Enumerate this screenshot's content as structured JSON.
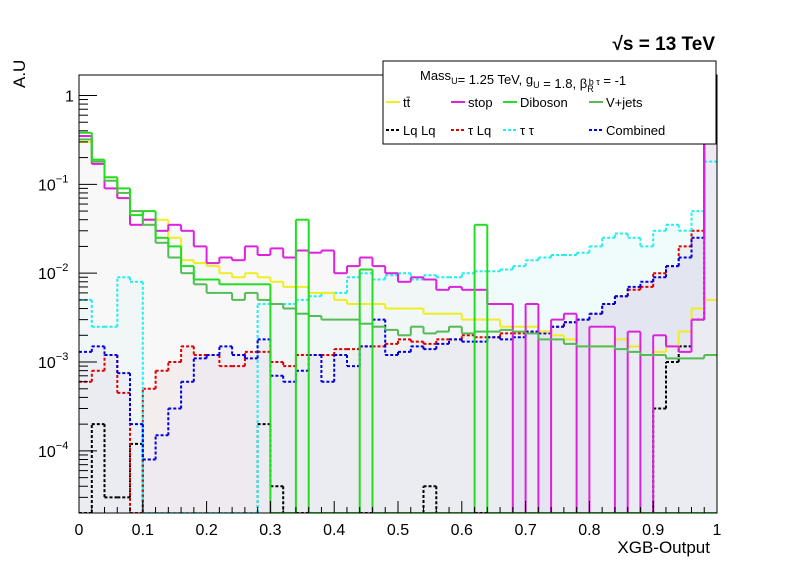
{
  "chart_data": {
    "type": "histogram",
    "energy_label": "√s = 13 TeV",
    "ylabel": "A.U",
    "xlabel": "XGB-Output",
    "yscale": "log",
    "ylim": [
      2e-05,
      1.7
    ],
    "xlim": [
      0,
      1
    ],
    "n_bins": 50,
    "x_tick_labels": [
      "0",
      "0.1",
      "0.2",
      "0.3",
      "0.4",
      "0.5",
      "0.6",
      "0.7",
      "0.8",
      "0.9",
      "1"
    ],
    "y_tick_labels": [
      {
        "value": 1,
        "base": "1",
        "exp": ""
      },
      {
        "value": 0.1,
        "base": "10",
        "exp": "−1"
      },
      {
        "value": 0.01,
        "base": "10",
        "exp": "−2"
      },
      {
        "value": 0.001,
        "base": "10",
        "exp": "−3"
      },
      {
        "value": 0.0001,
        "base": "10",
        "exp": "−4"
      }
    ],
    "legend": {
      "header": "Mass_U= 1.25 TeV, g_U = 1.8, β_R^{b τ} = -1",
      "entries": [
        {
          "label": "tt̄",
          "color": "#eeee22",
          "dashed": false
        },
        {
          "label": "stop",
          "color": "#dd22dd",
          "dashed": false
        },
        {
          "label": "Diboson",
          "color": "#22dd22",
          "dashed": false
        },
        {
          "label": "V+jets",
          "color": "#55bb55",
          "dashed": false
        },
        {
          "label": "Lq Lq",
          "color": "#000000",
          "dashed": true
        },
        {
          "label": "τ Lq",
          "color": "#dd0000",
          "dashed": true
        },
        {
          "label": "τ τ",
          "color": "#22eeee",
          "dashed": true
        },
        {
          "label": "Combined",
          "color": "#0000dd",
          "dashed": true
        }
      ]
    },
    "series": [
      {
        "name": "Lq Lq",
        "color": "#000000",
        "dashed": true,
        "fill": null,
        "values": [
          2e-05,
          0.0002,
          3e-05,
          3e-05,
          0.00012,
          2e-05,
          2e-05,
          2e-05,
          2e-05,
          2e-05,
          2e-05,
          2e-05,
          2e-05,
          2e-05,
          0.0002,
          4e-05,
          2e-05,
          2e-05,
          2e-05,
          2e-05,
          2e-05,
          2e-05,
          2e-05,
          2e-05,
          2e-05,
          2e-05,
          2e-05,
          4e-05,
          2e-05,
          2e-05,
          2e-05,
          2e-05,
          2e-05,
          2e-05,
          2e-05,
          2e-05,
          2e-05,
          2e-05,
          2e-05,
          2e-05,
          2e-05,
          2e-05,
          2e-05,
          2e-05,
          2e-05,
          0.0003,
          0.001,
          0.0015,
          0.003,
          0.95
        ]
      },
      {
        "name": "τ Lq",
        "color": "#dd0000",
        "dashed": true,
        "fill": "#f0d4d4",
        "values": [
          0.0006,
          0.0008,
          0.0012,
          0.00045,
          2e-05,
          0.0005,
          0.0008,
          0.001,
          0.0015,
          0.0012,
          0.0012,
          0.0009,
          0.0009,
          0.0013,
          0.0013,
          0.001,
          0.0009,
          0.0012,
          0.0012,
          0.0012,
          0.0014,
          0.0014,
          0.0015,
          0.0015,
          0.0016,
          0.0018,
          0.0017,
          0.0016,
          0.0018,
          0.0018,
          0.002,
          0.0019,
          0.0019,
          0.0021,
          0.0021,
          0.0022,
          0.0022,
          0.0025,
          0.0028,
          0.003,
          0.0035,
          0.0045,
          0.0055,
          0.0065,
          0.007,
          0.01,
          0.012,
          0.02,
          0.03,
          0.8
        ]
      },
      {
        "name": "τ τ",
        "color": "#22eeee",
        "dashed": true,
        "fill": "#e4f7f7",
        "values": [
          0.005,
          0.0025,
          0.0025,
          0.009,
          0.008,
          2e-05,
          2e-05,
          2e-05,
          2e-05,
          2e-05,
          2e-05,
          2e-05,
          2e-05,
          2e-05,
          0.0045,
          0.0045,
          0.0045,
          0.005,
          0.0055,
          0.006,
          0.006,
          0.009,
          0.01,
          0.0085,
          0.0095,
          0.01,
          0.0085,
          0.0095,
          0.009,
          0.009,
          0.01,
          0.0105,
          0.0105,
          0.011,
          0.012,
          0.014,
          0.015,
          0.016,
          0.016,
          0.017,
          0.02,
          0.025,
          0.028,
          0.025,
          0.02,
          0.03,
          0.035,
          0.03,
          0.05,
          0.18
        ]
      },
      {
        "name": "Combined",
        "color": "#0000dd",
        "dashed": true,
        "fill": "#dcdcf0",
        "values": [
          0.0013,
          0.0015,
          0.0012,
          0.00075,
          0.0002,
          8e-05,
          0.00015,
          0.0003,
          0.0006,
          0.0011,
          0.0012,
          0.0015,
          0.0012,
          0.0011,
          0.0018,
          0.0007,
          0.0006,
          0.0008,
          0.0012,
          0.0006,
          0.0012,
          0.0009,
          0.0015,
          0.003,
          0.0012,
          0.0013,
          0.0015,
          0.0014,
          0.0016,
          0.0018,
          0.0017,
          0.0017,
          0.0019,
          0.0018,
          0.0019,
          0.0022,
          0.0021,
          0.0025,
          0.0028,
          0.003,
          0.0035,
          0.0045,
          0.0055,
          0.007,
          0.008,
          0.009,
          0.012,
          0.015,
          0.025,
          0.8
        ]
      },
      {
        "name": "tt̄",
        "color": "#eeee22",
        "dashed": false,
        "fill": null,
        "values": [
          0.3,
          0.17,
          0.12,
          0.07,
          0.05,
          0.04,
          0.04,
          0.025,
          0.014,
          0.013,
          0.012,
          0.01,
          0.009,
          0.01,
          0.009,
          0.008,
          0.007,
          0.007,
          0.006,
          0.006,
          0.005,
          0.0045,
          0.0045,
          0.0045,
          0.004,
          0.004,
          0.004,
          0.0035,
          0.0035,
          0.0035,
          0.003,
          0.003,
          0.003,
          0.0025,
          0.0025,
          0.0025,
          0.0022,
          0.002,
          0.0018,
          0.0015,
          0.0015,
          0.0015,
          0.0018,
          0.0015,
          0.0012,
          0.0013,
          0.0015,
          0.0022,
          0.004,
          0.005
        ]
      },
      {
        "name": "stop",
        "color": "#dd22dd",
        "dashed": false,
        "fill": "#f2f2f2",
        "values": [
          0.35,
          0.17,
          0.09,
          0.07,
          0.035,
          0.04,
          0.03,
          0.035,
          0.03,
          0.02,
          0.013,
          0.015,
          0.014,
          0.02,
          0.016,
          0.019,
          0.015,
          0.018,
          0.017,
          0.018,
          0.01,
          0.012,
          0.015,
          0.012,
          0.01,
          0.008,
          0.009,
          0.0085,
          0.0065,
          0.007,
          0.0065,
          0.0065,
          0.0045,
          0.0045,
          2e-05,
          0.0045,
          2e-05,
          0.003,
          0.0035,
          2e-05,
          0.0025,
          0.0025,
          2e-05,
          0.0022,
          2e-05,
          0.002,
          0.0015,
          0.0013,
          0.003,
          0.6
        ]
      },
      {
        "name": "V+jets",
        "color": "#55bb55",
        "dashed": false,
        "fill": null,
        "values": [
          0.32,
          0.18,
          0.11,
          0.08,
          0.05,
          0.035,
          0.022,
          0.015,
          0.01,
          0.0075,
          0.006,
          0.006,
          0.005,
          0.006,
          0.005,
          0.0045,
          0.004,
          0.0035,
          0.0033,
          0.003,
          0.003,
          0.003,
          0.0027,
          0.0025,
          0.0023,
          0.002,
          0.0025,
          0.0021,
          0.0022,
          0.0025,
          0.0021,
          0.0022,
          0.0022,
          0.0023,
          0.0022,
          0.0021,
          0.0018,
          0.0018,
          0.0016,
          0.0015,
          0.0015,
          0.0015,
          0.0014,
          0.0013,
          0.0012,
          0.0012,
          0.0011,
          0.0011,
          0.0011,
          0.0012
        ]
      },
      {
        "name": "Diboson",
        "color": "#22dd22",
        "dashed": false,
        "fill": null,
        "values": [
          0.38,
          0.19,
          0.12,
          0.09,
          0.045,
          0.05,
          0.025,
          0.02,
          0.012,
          0.0085,
          0.0085,
          0.0075,
          0.0075,
          0.0075,
          0.0075,
          2e-05,
          2e-05,
          0.04,
          2e-05,
          2e-05,
          2e-05,
          2e-05,
          0.011,
          2e-05,
          2e-05,
          2e-05,
          2e-05,
          2e-05,
          2e-05,
          2e-05,
          2e-05,
          0.035,
          2e-05,
          2e-05,
          2e-05,
          2e-05,
          2e-05,
          2e-05,
          2e-05,
          2e-05,
          2e-05,
          2e-05,
          2e-05,
          2e-05,
          2e-05,
          2e-05,
          2e-05,
          2e-05,
          2e-05,
          2e-05
        ]
      }
    ]
  }
}
